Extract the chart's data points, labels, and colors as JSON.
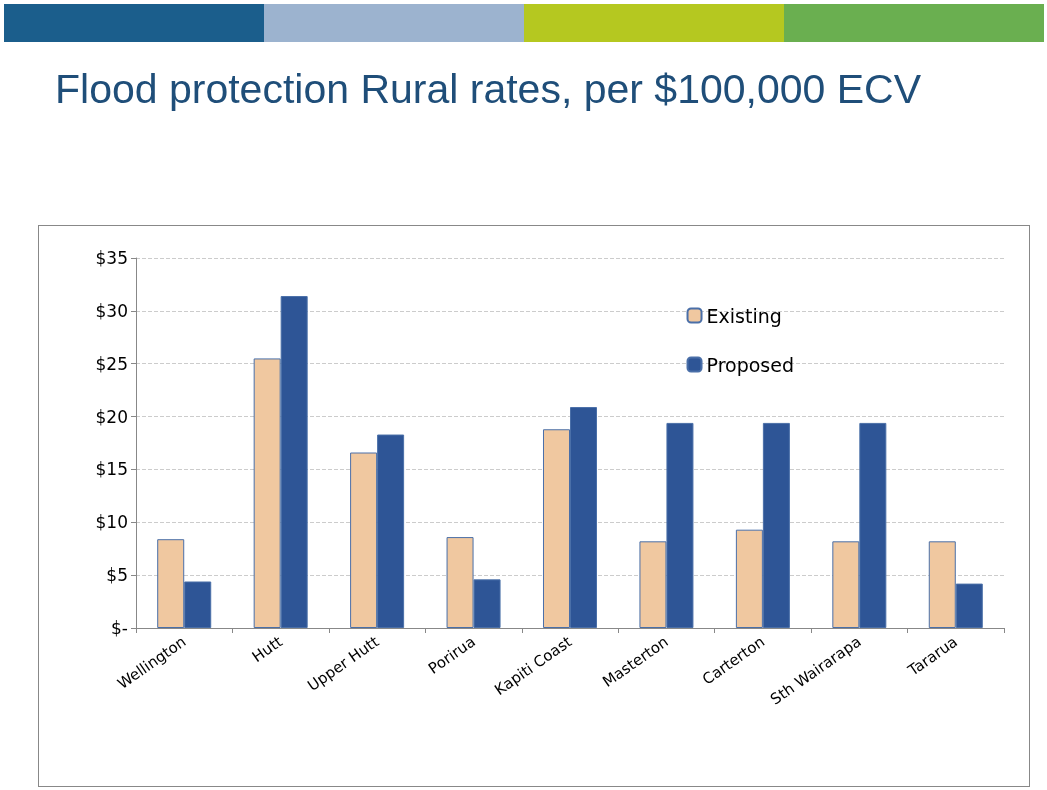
{
  "chart_data": {
    "type": "bar",
    "title": "Flood protection Rural rates, per $100,000 ECV",
    "categories": [
      "Wellington",
      "Hutt",
      "Upper Hutt",
      "Porirua",
      "Kapiti Coast",
      "Masterton",
      "Carterton",
      "Sth Wairarapa",
      "Tararua"
    ],
    "series": [
      {
        "name": "Existing",
        "color": "#f0c8a0",
        "values": [
          8.4,
          25.5,
          16.6,
          8.6,
          18.8,
          8.2,
          9.3,
          8.2,
          8.2
        ]
      },
      {
        "name": "Proposed",
        "color": "#2e5596",
        "values": [
          4.4,
          31.4,
          18.3,
          4.6,
          20.9,
          19.4,
          19.4,
          19.4,
          4.2
        ]
      }
    ],
    "ylim": [
      0,
      35
    ],
    "yticks": [
      {
        "value": 0,
        "label": "$-"
      },
      {
        "value": 5,
        "label": "$5"
      },
      {
        "value": 10,
        "label": "$10"
      },
      {
        "value": 15,
        "label": "$15"
      },
      {
        "value": 20,
        "label": "$20"
      },
      {
        "value": 25,
        "label": "$25"
      },
      {
        "value": 30,
        "label": "$30"
      },
      {
        "value": 35,
        "label": "$35"
      }
    ],
    "grid": "y",
    "legend": "top right"
  }
}
